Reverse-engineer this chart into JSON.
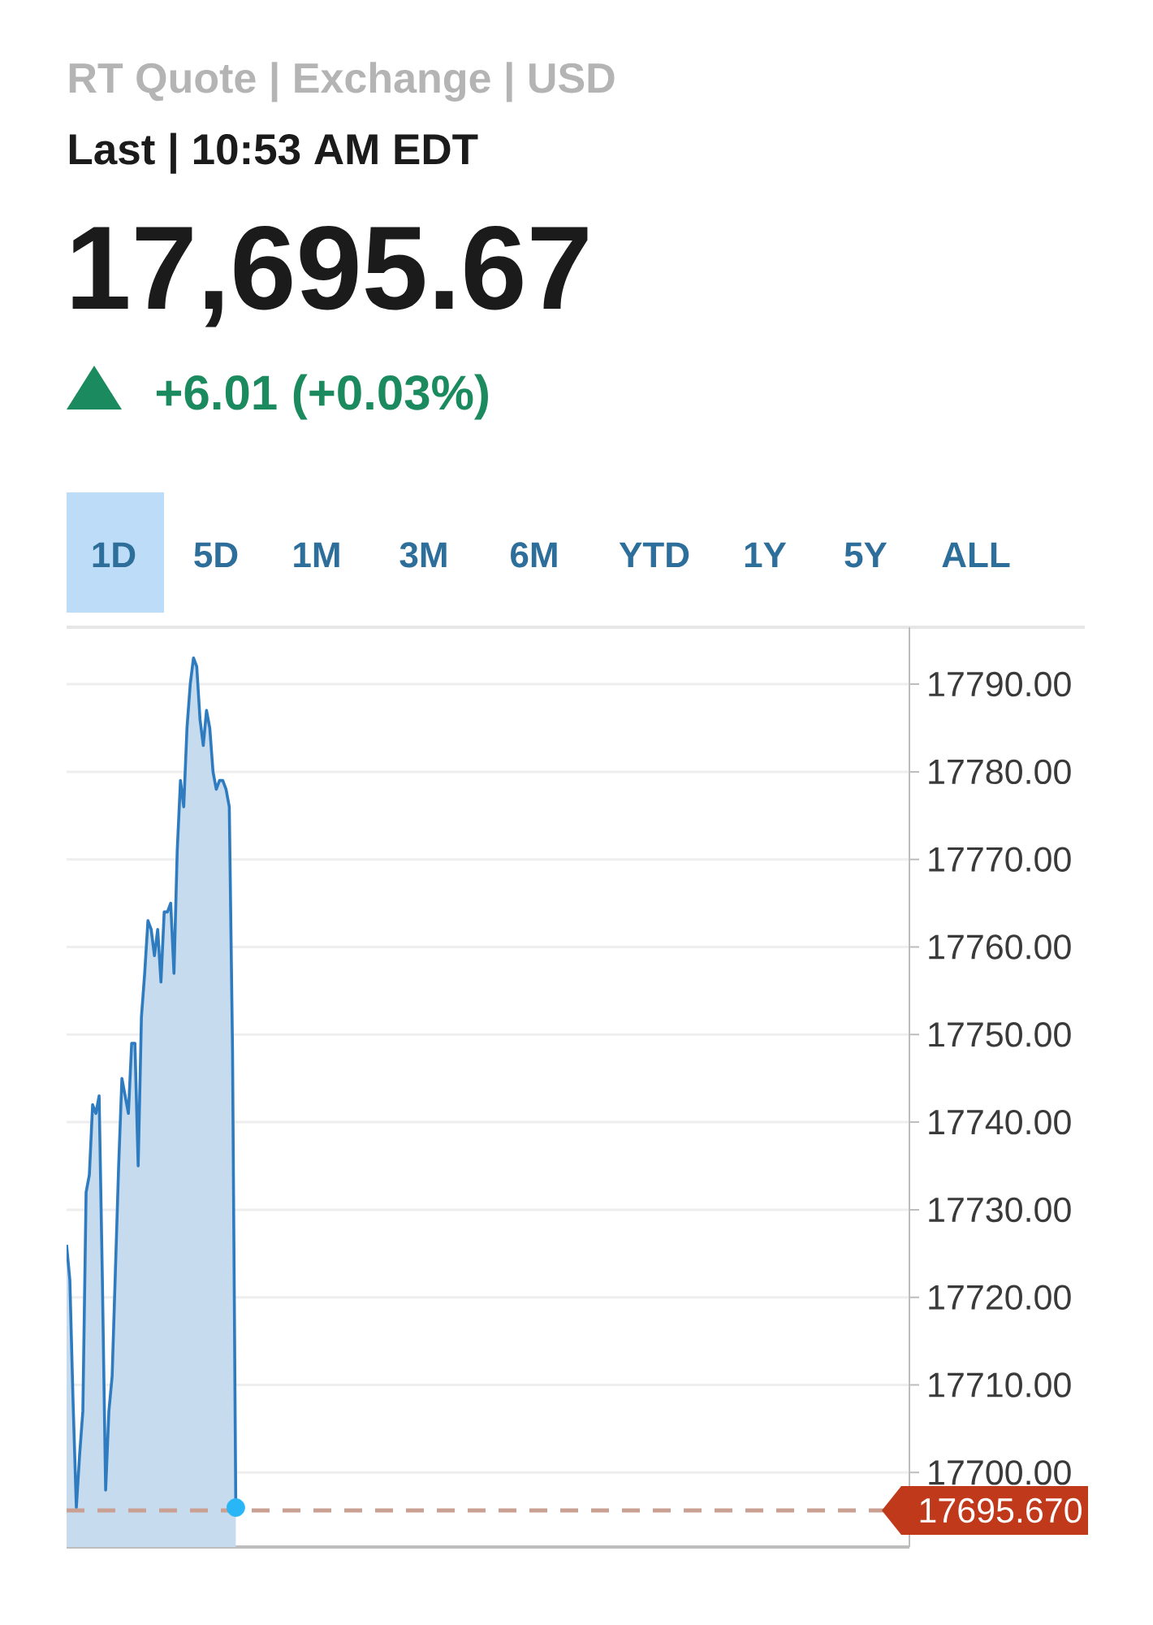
{
  "chart_data": {
    "type": "area",
    "title": "17,695.67",
    "subtitle": "+6.01 (+0.03%)",
    "annotations": [
      "RT Quote | Exchange | USD",
      "Last | 10:53 AM EDT",
      "1D",
      "5D",
      "1M",
      "3M",
      "6M",
      "YTD",
      "1Y",
      "5Y",
      "ALL"
    ],
    "categories": [
      null,
      null,
      null,
      null,
      null,
      null,
      null,
      null,
      null,
      null,
      null,
      null,
      null,
      null,
      null,
      null,
      null,
      null,
      null,
      null,
      null,
      null,
      null,
      null,
      null,
      null,
      null,
      null,
      null,
      null,
      null,
      null,
      null,
      null,
      null,
      null,
      null,
      null,
      null,
      null,
      null,
      null,
      null,
      null,
      null,
      null,
      null,
      null,
      null,
      null,
      null,
      null,
      null,
      null,
      null,
      null,
      null,
      null,
      null,
      null,
      null,
      null,
      null,
      null,
      null,
      null,
      null,
      null,
      null,
      null,
      null,
      null,
      null,
      null,
      null,
      null,
      null,
      null,
      null,
      null,
      null,
      null,
      null,
      null,
      null,
      null,
      null,
      null,
      null,
      null,
      null,
      null,
      null,
      null,
      null,
      null,
      null,
      null,
      null,
      null,
      null,
      null,
      null,
      null,
      null,
      null,
      null,
      null,
      null,
      null,
      null,
      null,
      null,
      null,
      null,
      null,
      null,
      null,
      null,
      null,
      null,
      null,
      null,
      null,
      null,
      null,
      null,
      null,
      null,
      null,
      null,
      null,
      null,
      null,
      null,
      null,
      null,
      null,
      null,
      null,
      null,
      null,
      null,
      null,
      null,
      null,
      null,
      null,
      null,
      null,
      null,
      null,
      null,
      null,
      null,
      null,
      null,
      null,
      null,
      null,
      null,
      null,
      null,
      null,
      null,
      null,
      null,
      null,
      null,
      null,
      null,
      null,
      null,
      null,
      null,
      null,
      null,
      null,
      null,
      null,
      null,
      null,
      null,
      null,
      null,
      null,
      null,
      null,
      null,
      null,
      null,
      null,
      null,
      null,
      null,
      null,
      null,
      null,
      null,
      null,
      null,
      null,
      null,
      null,
      null,
      null,
      null,
      null,
      null,
      null,
      null,
      null,
      null,
      null,
      null,
      null,
      null,
      null,
      null,
      null,
      null,
      null,
      null,
      null,
      null,
      null,
      null,
      null,
      null,
      null,
      null,
      null,
      null,
      null,
      null,
      null,
      null,
      null,
      null,
      null,
      null,
      null,
      null,
      null,
      null,
      null,
      null,
      null,
      null,
      null,
      null,
      null,
      null,
      null,
      null,
      null,
      null,
      null,
      null,
      null
    ],
    "series": [
      {
        "color": "#2f7bbf",
        "values": [
          17726,
          17722,
          17708,
          17696,
          17702,
          17707,
          17732,
          17734,
          17742,
          17741,
          17743,
          17722,
          17698,
          17707,
          17711,
          17723,
          17735,
          17745,
          17743,
          17741,
          17749,
          17749,
          17735,
          17752,
          17757,
          17763,
          17762,
          17759,
          17762,
          17756,
          17764,
          17764,
          17765,
          17757,
          17771,
          17779,
          17776,
          17785,
          17790,
          17793,
          17792,
          17786,
          17783,
          17787,
          17785,
          17780,
          17778,
          17779,
          17779,
          17778,
          17776,
          17748,
          17696,
          null,
          null,
          null,
          null,
          null,
          null,
          null,
          null,
          null,
          null,
          null,
          null,
          null,
          null,
          null,
          null,
          null,
          null,
          null,
          null,
          null,
          null,
          null,
          null,
          null,
          null,
          null,
          null,
          null,
          null,
          null,
          null,
          null,
          null,
          null,
          null,
          null,
          null,
          null,
          null,
          null,
          null,
          null,
          null,
          null,
          null,
          null,
          null,
          null,
          null,
          null,
          null,
          null,
          null,
          null,
          null,
          null,
          null,
          null,
          null,
          null,
          null,
          null,
          null,
          null,
          null,
          null,
          null,
          null,
          null,
          null,
          null,
          null,
          null,
          null,
          null,
          null,
          null,
          null,
          null,
          null,
          null,
          null,
          null,
          null,
          null,
          null,
          null,
          null,
          null,
          null,
          null,
          null,
          null,
          null,
          null,
          null,
          null,
          null,
          null,
          null,
          null,
          null,
          null,
          null,
          null,
          null,
          null,
          null,
          null,
          null,
          null,
          null,
          null,
          null,
          null,
          null,
          null,
          null,
          null,
          null,
          null,
          null,
          null,
          null,
          null,
          null,
          null,
          null,
          null,
          null,
          null,
          null,
          null,
          null,
          null,
          null,
          null,
          null,
          null,
          null,
          null,
          null,
          null,
          null,
          null,
          null,
          null,
          null,
          null,
          null,
          null,
          null,
          null,
          null,
          null,
          null,
          null,
          null,
          null,
          null,
          null,
          null,
          null,
          null,
          null,
          null,
          null,
          null,
          null,
          null,
          null,
          null,
          null,
          null,
          null,
          null,
          null,
          null,
          null,
          null,
          null,
          null,
          null,
          null,
          null,
          null,
          null,
          null,
          null,
          null,
          null,
          null,
          null,
          null,
          null,
          null,
          null,
          null,
          null,
          null,
          null,
          null,
          null,
          null,
          null,
          null
        ]
      },
      {
        "type": "scatter",
        "color": "#29b6f6",
        "marker": "circle",
        "values": [
          null,
          null,
          null,
          null,
          null,
          null,
          null,
          null,
          null,
          null,
          null,
          null,
          null,
          null,
          null,
          null,
          null,
          null,
          null,
          null,
          null,
          null,
          null,
          null,
          null,
          null,
          null,
          null,
          null,
          null,
          null,
          null,
          null,
          null,
          null,
          null,
          null,
          null,
          null,
          null,
          null,
          null,
          null,
          null,
          null,
          null,
          null,
          null,
          null,
          null,
          null,
          null,
          17696,
          null,
          null,
          null,
          null,
          null,
          null,
          null,
          null,
          null,
          null,
          null,
          null,
          null,
          null,
          null,
          null,
          null,
          null,
          null,
          null,
          null,
          null,
          null,
          null,
          null,
          null,
          null,
          null,
          null,
          null,
          null,
          null,
          null,
          null,
          null,
          null,
          null,
          null,
          null,
          null,
          null,
          null,
          null,
          null,
          null,
          null,
          null,
          null,
          null,
          null,
          null,
          null,
          null,
          null,
          null,
          null,
          null,
          null,
          null,
          null,
          null,
          null,
          null,
          null,
          null,
          null,
          null,
          null,
          null,
          null,
          null,
          null,
          null,
          null,
          null,
          null,
          null,
          null,
          null,
          null,
          null,
          null,
          null,
          null,
          null,
          null,
          null,
          null,
          null,
          null,
          null,
          null,
          null,
          null,
          null,
          null,
          null,
          null,
          null,
          null,
          null,
          null,
          null,
          null,
          null,
          null,
          null,
          null,
          null,
          null,
          null,
          null,
          null,
          null,
          null,
          null,
          null,
          null,
          null,
          null,
          null,
          null,
          null,
          null,
          null,
          null,
          null,
          null,
          null,
          null,
          null,
          null,
          null,
          null,
          null,
          null,
          null,
          null,
          null,
          null,
          null,
          null,
          null,
          null,
          null,
          null,
          null,
          null,
          null,
          null,
          null,
          null,
          null,
          null,
          null,
          null,
          null,
          null,
          null,
          null,
          null,
          null,
          null,
          null,
          null,
          null,
          null,
          null,
          null,
          null,
          null,
          null,
          null,
          null,
          null,
          null,
          null,
          null,
          null,
          null,
          null,
          null,
          null,
          null,
          null,
          null,
          null,
          null,
          null,
          null,
          null,
          null,
          null,
          null,
          null,
          null,
          null,
          null,
          null,
          null,
          null,
          null,
          null,
          null,
          null,
          null,
          null
        ]
      }
    ],
    "ylim": [
      17691.5,
      17796.5
    ],
    "yticks": [
      {
        "value": 17700,
        "label": "17700.00"
      },
      {
        "value": 17710,
        "label": "17710.00"
      },
      {
        "value": 17720,
        "label": "17720.00"
      },
      {
        "value": 17730,
        "label": "17730.00"
      },
      {
        "value": 17740,
        "label": "17740.00"
      },
      {
        "value": 17750,
        "label": "17750.00"
      },
      {
        "value": 17760,
        "label": "17760.00"
      },
      {
        "value": 17770,
        "label": "17770.00"
      },
      {
        "value": 17780,
        "label": "17780.00"
      },
      {
        "value": 17790,
        "label": "17790.00"
      }
    ],
    "grid": "y",
    "ref_lines": [
      {
        "axis": "y",
        "value": 17695.67,
        "label": "17695.670",
        "color": "#c9a092",
        "line_style": "dashed"
      }
    ]
  }
}
